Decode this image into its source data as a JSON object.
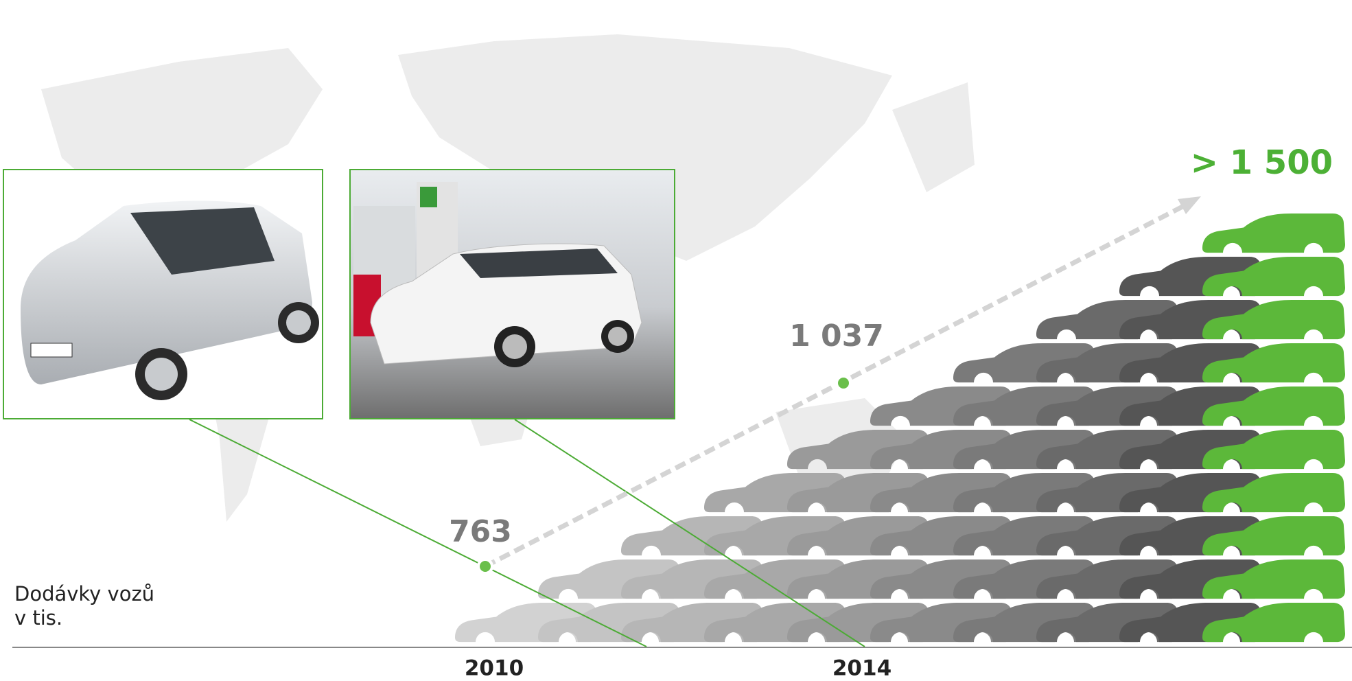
{
  "axis_label": {
    "line1": "Dodávky vozů",
    "line2": "v tis."
  },
  "points": [
    {
      "year": "2010",
      "label": "763"
    },
    {
      "year": "2014",
      "label": "1 037"
    }
  ],
  "target": "> 1 500"
}
